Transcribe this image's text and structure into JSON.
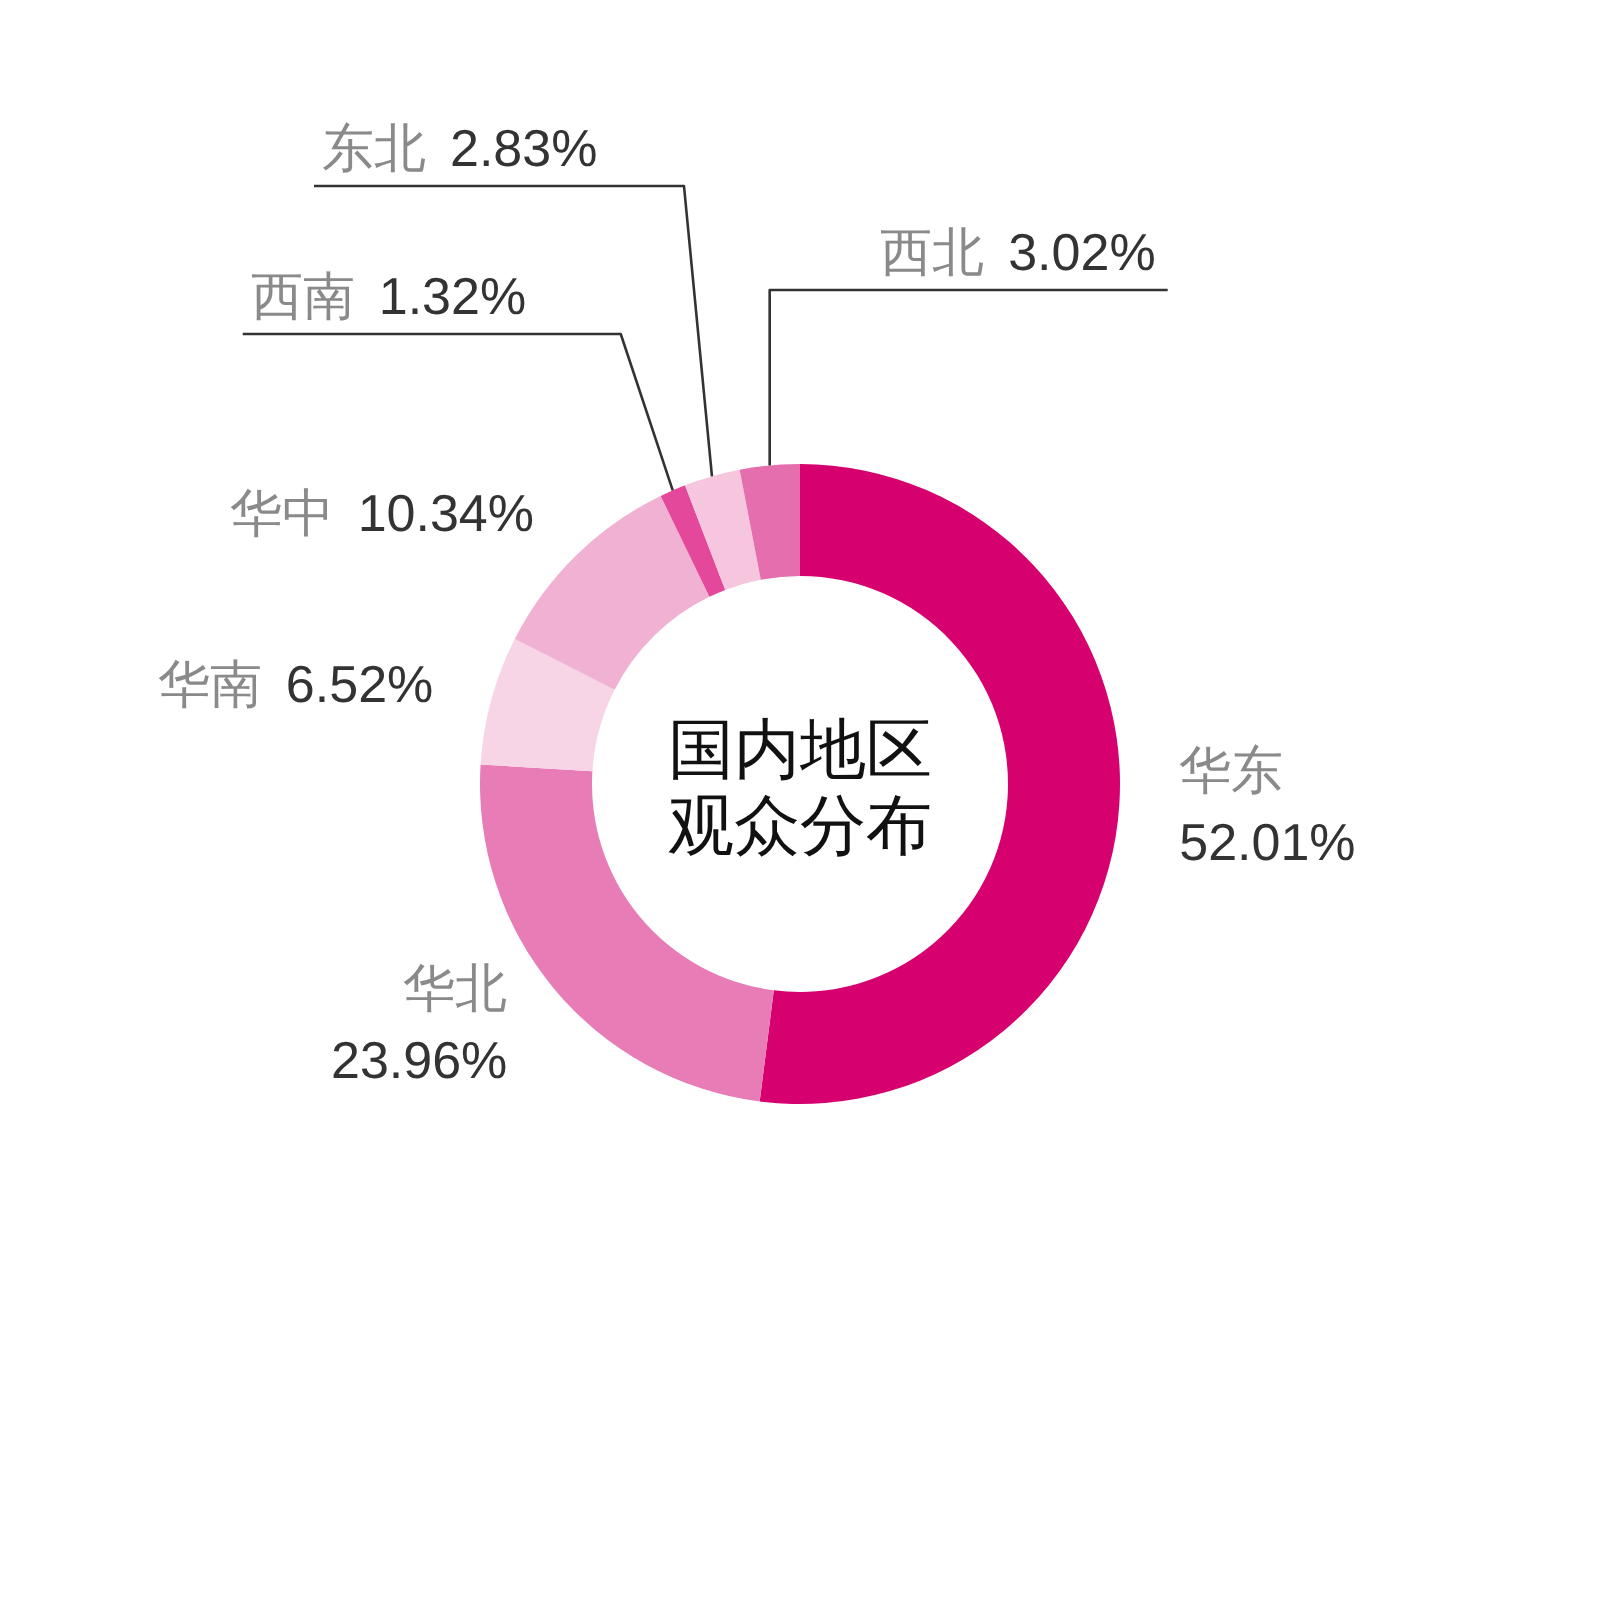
{
  "chart_data": {
    "type": "donut",
    "title": "国内地区观众分布",
    "categories": [
      "华东",
      "华北",
      "华南",
      "华中",
      "西南",
      "东北",
      "西北"
    ],
    "values": [
      52.01,
      23.96,
      6.52,
      10.34,
      1.32,
      2.83,
      3.02
    ],
    "colors": [
      "#d6006e",
      "#e87cb6",
      "#f7d4e6",
      "#f0b1d3",
      "#e3489b",
      "#f5c6de",
      "#e56fae"
    ],
    "value_labels": [
      "52.01%",
      "23.96%",
      "6.52%",
      "10.34%",
      "1.32%",
      "2.83%",
      "3.02%"
    ]
  }
}
